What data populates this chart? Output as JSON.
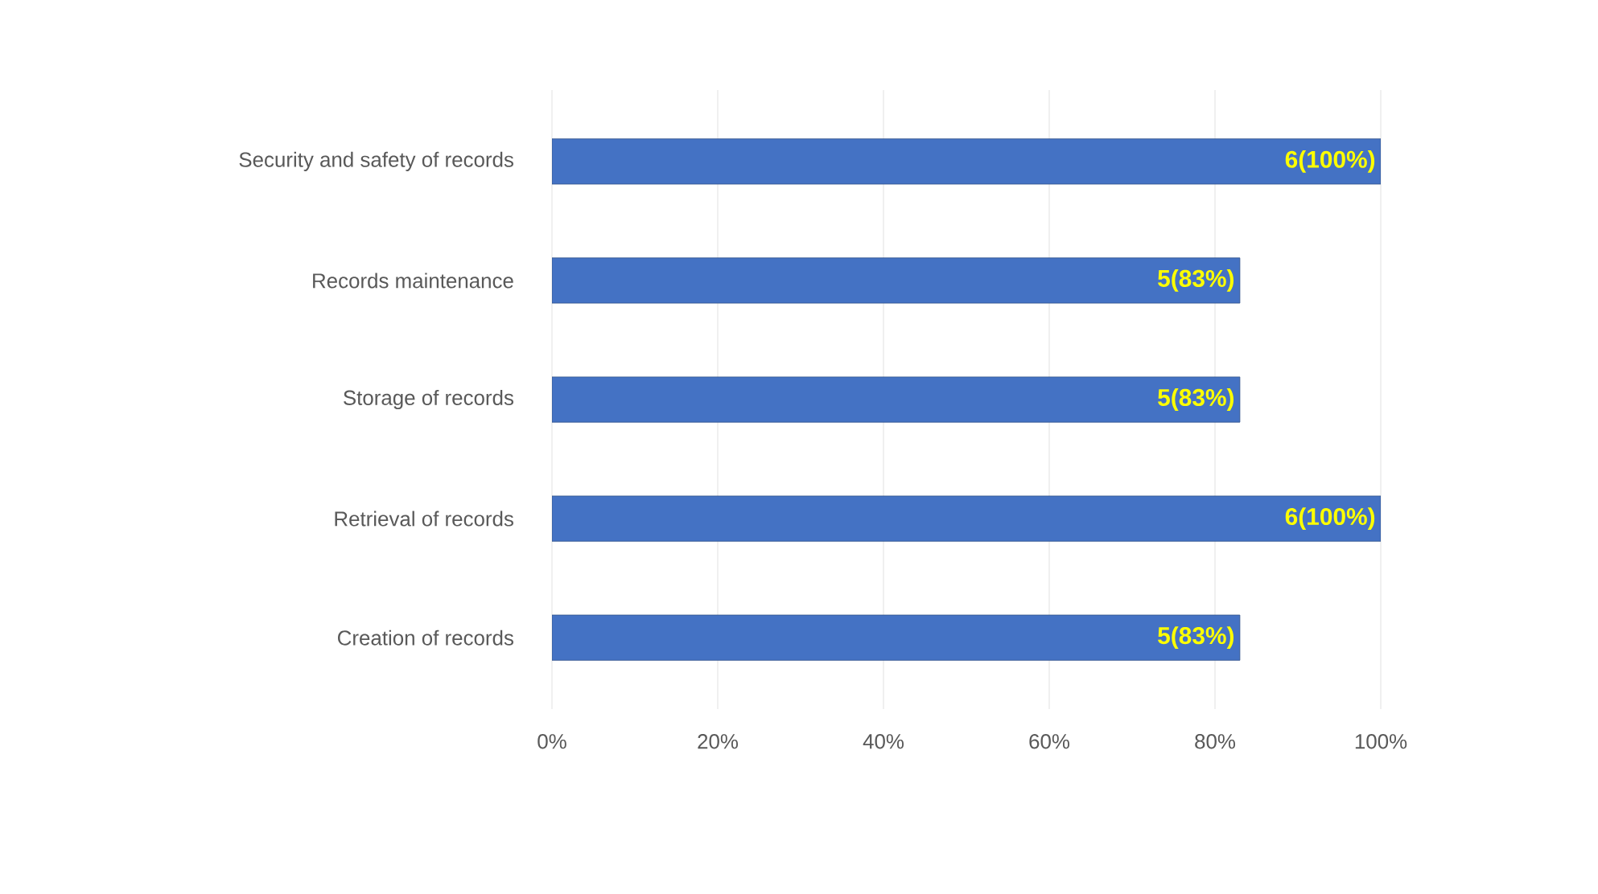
{
  "chart_data": {
    "type": "bar",
    "orientation": "horizontal",
    "categories": [
      "Security and safety of records",
      "Records maintenance",
      "Storage of records",
      "Retrieval of records",
      "Creation of records"
    ],
    "values": [
      100,
      83,
      83,
      100,
      83
    ],
    "value_labels": [
      "6(100%)",
      "5(83%)",
      "5(83%)",
      "6(100%)",
      "5(83%)"
    ],
    "color": "#4472c4",
    "xlim": [
      0,
      100
    ],
    "xticks": [
      {
        "value": 0,
        "label": "0%"
      },
      {
        "value": 20,
        "label": "20%"
      },
      {
        "value": 40,
        "label": "40%"
      },
      {
        "value": 60,
        "label": "60%"
      },
      {
        "value": 80,
        "label": "80%"
      },
      {
        "value": 100,
        "label": "100%"
      }
    ],
    "grid": "x"
  }
}
